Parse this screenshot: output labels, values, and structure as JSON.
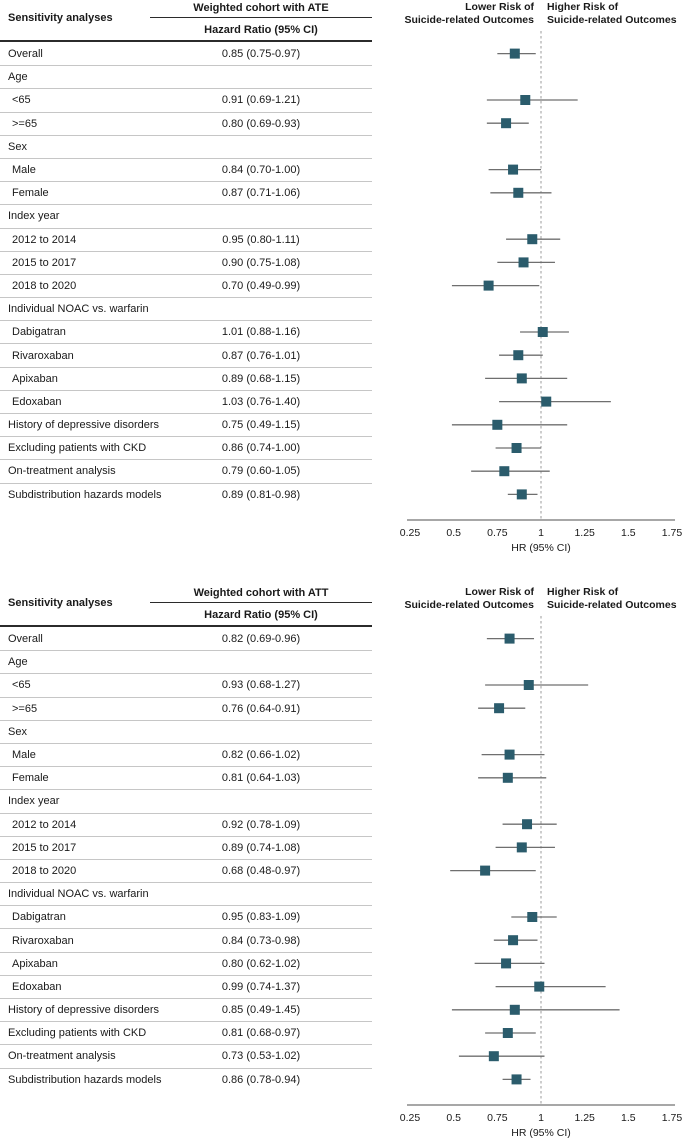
{
  "figure": {
    "accent_color": "#2b5c6c",
    "ci_line_color": "#6f6f6f",
    "axis_color": "#4f4f4f",
    "refline_color": "#9b9b9b",
    "separator_color": "#c6c6c6",
    "grid": false
  },
  "chart_data": [
    {
      "type": "forest",
      "title": "Weighted cohort with ATE",
      "col_header": "Sensitivity analyses",
      "value_header": "Hazard Ratio (95% CI)",
      "left_label_line1": "Lower Risk of",
      "left_label_line2": "Suicide-related Outcomes",
      "right_label_line1": "Higher Risk of",
      "right_label_line2": "Suicide-related Outcomes",
      "xlabel": "HR (95% CI)",
      "xlim": [
        0.25,
        1.75
      ],
      "refline": 1,
      "ticks": [
        "0.25",
        "0.5",
        "0.75",
        "1",
        "1.25",
        "1.5",
        "1.75"
      ],
      "legend_position": "none",
      "rows": [
        {
          "label": "Overall",
          "type": "item",
          "indent": 0,
          "hr": 0.85,
          "lo": 0.75,
          "hi": 0.97,
          "text": "0.85 (0.75-0.97)"
        },
        {
          "label": "Age",
          "type": "category",
          "indent": 0
        },
        {
          "label": "<65",
          "type": "item",
          "indent": 1,
          "hr": 0.91,
          "lo": 0.69,
          "hi": 1.21,
          "text": "0.91 (0.69-1.21)"
        },
        {
          "label": ">=65",
          "type": "item",
          "indent": 1,
          "hr": 0.8,
          "lo": 0.69,
          "hi": 0.93,
          "text": "0.80 (0.69-0.93)"
        },
        {
          "label": "Sex",
          "type": "category",
          "indent": 0
        },
        {
          "label": "Male",
          "type": "item",
          "indent": 1,
          "hr": 0.84,
          "lo": 0.7,
          "hi": 1.0,
          "text": "0.84 (0.70-1.00)"
        },
        {
          "label": "Female",
          "type": "item",
          "indent": 1,
          "hr": 0.87,
          "lo": 0.71,
          "hi": 1.06,
          "text": "0.87 (0.71-1.06)"
        },
        {
          "label": "Index year",
          "type": "category",
          "indent": 0
        },
        {
          "label": "2012 to 2014",
          "type": "item",
          "indent": 1,
          "hr": 0.95,
          "lo": 0.8,
          "hi": 1.11,
          "text": "0.95 (0.80-1.11)"
        },
        {
          "label": "2015 to 2017",
          "type": "item",
          "indent": 1,
          "hr": 0.9,
          "lo": 0.75,
          "hi": 1.08,
          "text": "0.90 (0.75-1.08)"
        },
        {
          "label": "2018 to 2020",
          "type": "item",
          "indent": 1,
          "hr": 0.7,
          "lo": 0.49,
          "hi": 0.99,
          "text": "0.70 (0.49-0.99)"
        },
        {
          "label": "Individual NOAC vs. warfarin",
          "type": "category",
          "indent": 0
        },
        {
          "label": "Dabigatran",
          "type": "item",
          "indent": 1,
          "hr": 1.01,
          "lo": 0.88,
          "hi": 1.16,
          "text": "1.01 (0.88-1.16)"
        },
        {
          "label": "Rivaroxaban",
          "type": "item",
          "indent": 1,
          "hr": 0.87,
          "lo": 0.76,
          "hi": 1.01,
          "text": "0.87 (0.76-1.01)"
        },
        {
          "label": "Apixaban",
          "type": "item",
          "indent": 1,
          "hr": 0.89,
          "lo": 0.68,
          "hi": 1.15,
          "text": "0.89 (0.68-1.15)"
        },
        {
          "label": "Edoxaban",
          "type": "item",
          "indent": 1,
          "hr": 1.03,
          "lo": 0.76,
          "hi": 1.4,
          "text": "1.03 (0.76-1.40)"
        },
        {
          "label": "History of depressive disorders",
          "type": "item",
          "indent": 0,
          "hr": 0.75,
          "lo": 0.49,
          "hi": 1.15,
          "text": "0.75 (0.49-1.15)"
        },
        {
          "label": "Excluding patients with CKD",
          "type": "item",
          "indent": 0,
          "hr": 0.86,
          "lo": 0.74,
          "hi": 1.0,
          "text": "0.86 (0.74-1.00)"
        },
        {
          "label": "On-treatment analysis",
          "type": "item",
          "indent": 0,
          "hr": 0.79,
          "lo": 0.6,
          "hi": 1.05,
          "text": "0.79 (0.60-1.05)"
        },
        {
          "label": "Subdistribution hazards models",
          "type": "item",
          "indent": 0,
          "hr": 0.89,
          "lo": 0.81,
          "hi": 0.98,
          "text": "0.89 (0.81-0.98)"
        }
      ]
    },
    {
      "type": "forest",
      "title": "Weighted cohort with ATT",
      "col_header": "Sensitivity analyses",
      "value_header": "Hazard Ratio (95% CI)",
      "left_label_line1": "Lower Risk of",
      "left_label_line2": "Suicide-related Outcomes",
      "right_label_line1": "Higher Risk of",
      "right_label_line2": "Suicide-related Outcomes",
      "xlabel": "HR (95% CI)",
      "xlim": [
        0.25,
        1.75
      ],
      "refline": 1,
      "ticks": [
        "0.25",
        "0.5",
        "0.75",
        "1",
        "1.25",
        "1.5",
        "1.75"
      ],
      "legend_position": "none",
      "rows": [
        {
          "label": "Overall",
          "type": "item",
          "indent": 0,
          "hr": 0.82,
          "lo": 0.69,
          "hi": 0.96,
          "text": "0.82 (0.69-0.96)"
        },
        {
          "label": "Age",
          "type": "category",
          "indent": 0
        },
        {
          "label": "<65",
          "type": "item",
          "indent": 1,
          "hr": 0.93,
          "lo": 0.68,
          "hi": 1.27,
          "text": "0.93 (0.68-1.27)"
        },
        {
          "label": ">=65",
          "type": "item",
          "indent": 1,
          "hr": 0.76,
          "lo": 0.64,
          "hi": 0.91,
          "text": "0.76 (0.64-0.91)"
        },
        {
          "label": "Sex",
          "type": "category",
          "indent": 0
        },
        {
          "label": "Male",
          "type": "item",
          "indent": 1,
          "hr": 0.82,
          "lo": 0.66,
          "hi": 1.02,
          "text": "0.82 (0.66-1.02)"
        },
        {
          "label": "Female",
          "type": "item",
          "indent": 1,
          "hr": 0.81,
          "lo": 0.64,
          "hi": 1.03,
          "text": "0.81 (0.64-1.03)"
        },
        {
          "label": "Index year",
          "type": "category",
          "indent": 0
        },
        {
          "label": "2012 to 2014",
          "type": "item",
          "indent": 1,
          "hr": 0.92,
          "lo": 0.78,
          "hi": 1.09,
          "text": "0.92 (0.78-1.09)"
        },
        {
          "label": "2015 to 2017",
          "type": "item",
          "indent": 1,
          "hr": 0.89,
          "lo": 0.74,
          "hi": 1.08,
          "text": "0.89 (0.74-1.08)"
        },
        {
          "label": "2018 to 2020",
          "type": "item",
          "indent": 1,
          "hr": 0.68,
          "lo": 0.48,
          "hi": 0.97,
          "text": "0.68 (0.48-0.97)"
        },
        {
          "label": "Individual NOAC vs. warfarin",
          "type": "category",
          "indent": 0
        },
        {
          "label": "Dabigatran",
          "type": "item",
          "indent": 1,
          "hr": 0.95,
          "lo": 0.83,
          "hi": 1.09,
          "text": "0.95 (0.83-1.09)"
        },
        {
          "label": "Rivaroxaban",
          "type": "item",
          "indent": 1,
          "hr": 0.84,
          "lo": 0.73,
          "hi": 0.98,
          "text": "0.84 (0.73-0.98)"
        },
        {
          "label": "Apixaban",
          "type": "item",
          "indent": 1,
          "hr": 0.8,
          "lo": 0.62,
          "hi": 1.02,
          "text": "0.80 (0.62-1.02)"
        },
        {
          "label": "Edoxaban",
          "type": "item",
          "indent": 1,
          "hr": 0.99,
          "lo": 0.74,
          "hi": 1.37,
          "text": "0.99 (0.74-1.37)"
        },
        {
          "label": "History of depressive disorders",
          "type": "item",
          "indent": 0,
          "hr": 0.85,
          "lo": 0.49,
          "hi": 1.45,
          "text": "0.85 (0.49-1.45)"
        },
        {
          "label": "Excluding patients with CKD",
          "type": "item",
          "indent": 0,
          "hr": 0.81,
          "lo": 0.68,
          "hi": 0.97,
          "text": "0.81 (0.68-0.97)"
        },
        {
          "label": "On-treatment analysis",
          "type": "item",
          "indent": 0,
          "hr": 0.73,
          "lo": 0.53,
          "hi": 1.02,
          "text": "0.73 (0.53-1.02)"
        },
        {
          "label": "Subdistribution hazards models",
          "type": "item",
          "indent": 0,
          "hr": 0.86,
          "lo": 0.78,
          "hi": 0.94,
          "text": "0.86 (0.78-0.94)"
        }
      ]
    }
  ]
}
